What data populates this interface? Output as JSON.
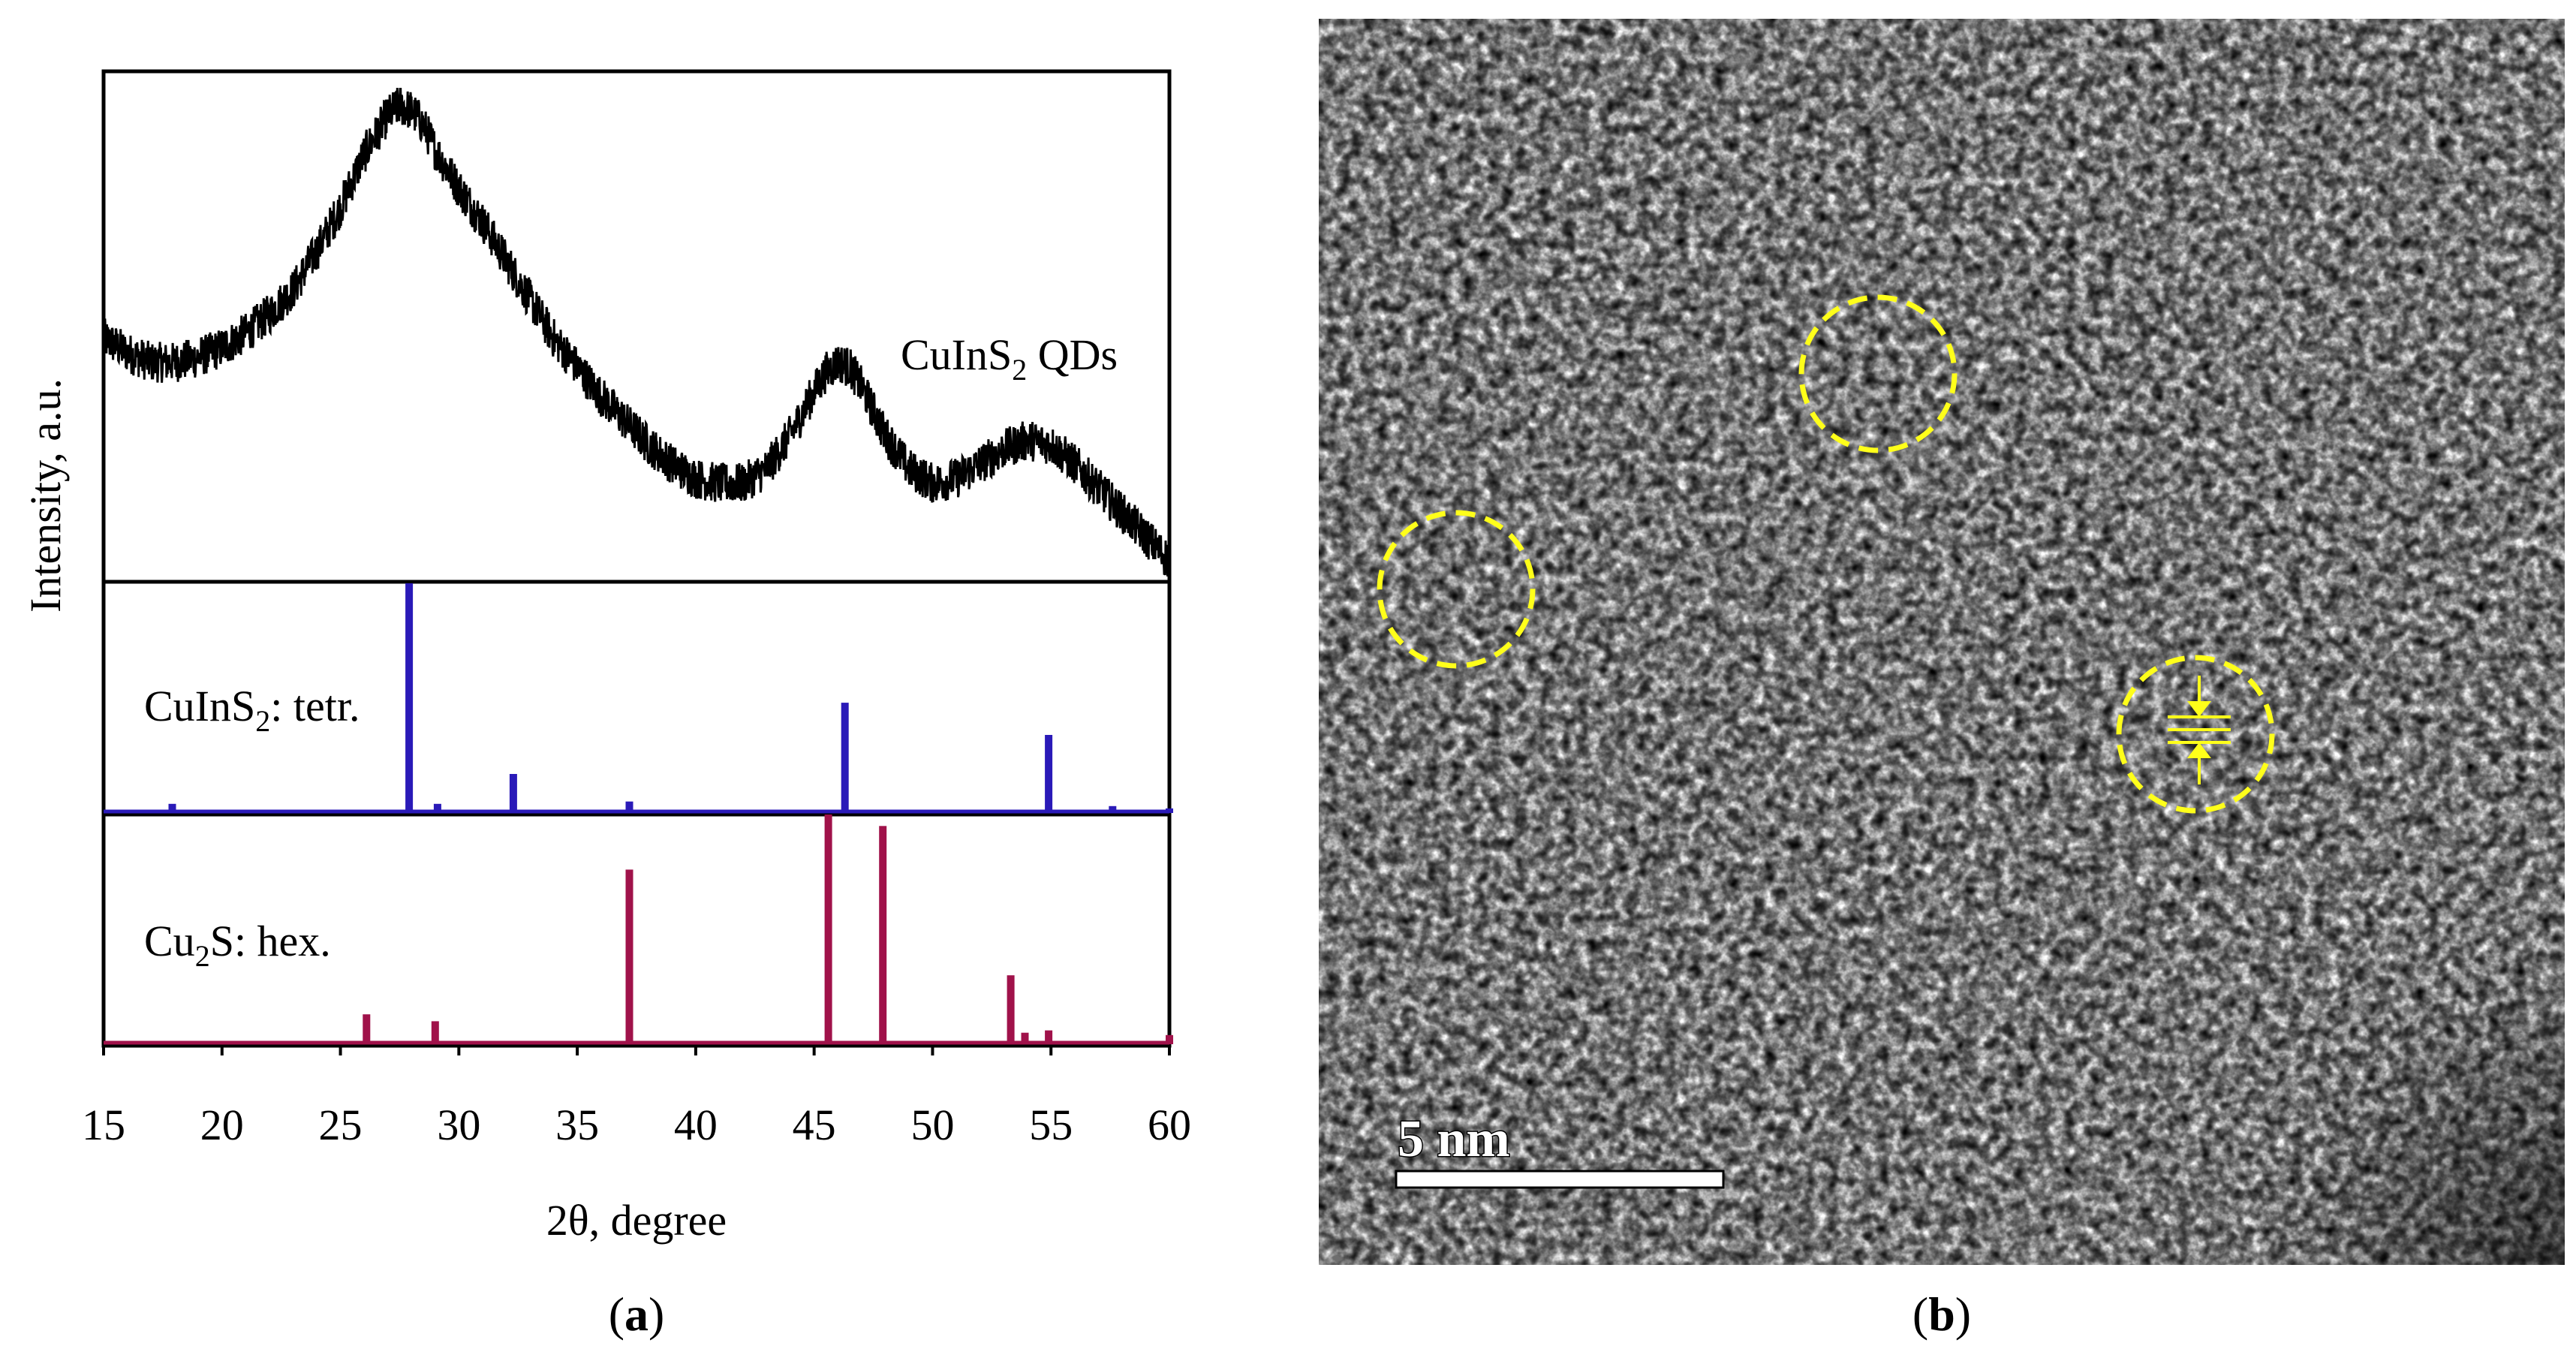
{
  "figure": {
    "panel_a_label": "a",
    "panel_b_label": "b"
  },
  "chart_data": [
    {
      "type": "line",
      "title": "",
      "xlabel": "2θ, degree",
      "ylabel": "Intensity, a.u.",
      "xlim": [
        15,
        60
      ],
      "xticks": [
        15,
        20,
        25,
        30,
        35,
        40,
        45,
        50,
        55,
        60
      ],
      "yticks": "none",
      "grid": false,
      "series": [
        {
          "name": "CuInS₂ QDs",
          "name_base": "CuInS",
          "name_sub": "2",
          "name_tail": " QDs",
          "color": "#000000",
          "style": "noisy line",
          "x": [
            15,
            16,
            17,
            18,
            19,
            20,
            21,
            22,
            23,
            24,
            25,
            26,
            26.5,
            27,
            27.5,
            28,
            28.5,
            29,
            30,
            31,
            32,
            33,
            34,
            35,
            36,
            37,
            38,
            39,
            40,
            41,
            42,
            43,
            44,
            45,
            45.5,
            46,
            46.5,
            47,
            48,
            49,
            50,
            51,
            52,
            53,
            54,
            55,
            56,
            57,
            58,
            59,
            60
          ],
          "y": [
            0.48,
            0.45,
            0.43,
            0.43,
            0.44,
            0.46,
            0.49,
            0.53,
            0.58,
            0.66,
            0.75,
            0.86,
            0.9,
            0.94,
            0.96,
            0.95,
            0.92,
            0.87,
            0.79,
            0.72,
            0.64,
            0.56,
            0.48,
            0.42,
            0.36,
            0.31,
            0.26,
            0.22,
            0.19,
            0.18,
            0.18,
            0.21,
            0.28,
            0.37,
            0.41,
            0.43,
            0.42,
            0.38,
            0.28,
            0.21,
            0.18,
            0.19,
            0.22,
            0.25,
            0.27,
            0.26,
            0.22,
            0.17,
            0.12,
            0.07,
            0.02
          ]
        }
      ],
      "reference_patterns": [
        {
          "label_base": "CuInS",
          "label_sub": "2",
          "label_tail": ": tetr.",
          "color": "#2a1ab8",
          "peaks": [
            {
              "x": 17.9,
              "y": 0.04
            },
            {
              "x": 27.9,
              "y": 1.0
            },
            {
              "x": 29.1,
              "y": 0.04
            },
            {
              "x": 32.3,
              "y": 0.17
            },
            {
              "x": 37.2,
              "y": 0.05
            },
            {
              "x": 46.3,
              "y": 0.48
            },
            {
              "x": 54.9,
              "y": 0.34
            },
            {
              "x": 57.6,
              "y": 0.03
            },
            {
              "x": 60.0,
              "y": 0.02
            }
          ]
        },
        {
          "label_base": "Cu",
          "label_sub": "2",
          "label_tail": "S: hex.",
          "color": "#a0124a",
          "peaks": [
            {
              "x": 26.1,
              "y": 0.13
            },
            {
              "x": 29.0,
              "y": 0.1
            },
            {
              "x": 37.2,
              "y": 0.76
            },
            {
              "x": 45.6,
              "y": 1.0
            },
            {
              "x": 47.9,
              "y": 0.95
            },
            {
              "x": 53.3,
              "y": 0.3
            },
            {
              "x": 53.9,
              "y": 0.05
            },
            {
              "x": 54.9,
              "y": 0.06
            },
            {
              "x": 60.0,
              "y": 0.04
            }
          ]
        }
      ]
    }
  ],
  "micrograph": {
    "scale_bar_label": "5 nm",
    "background_color": "#7a7a7a",
    "marker_color": "#ffff1a"
  }
}
